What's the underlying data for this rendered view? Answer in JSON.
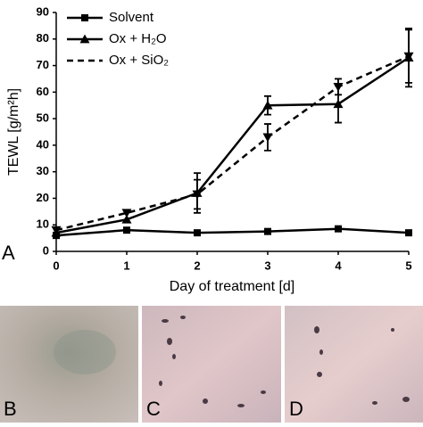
{
  "chart_data": {
    "type": "line",
    "panel_label": "A",
    "y_label": "TEWL [g/m²h]",
    "x_label": "Day of treatment [d]",
    "x": [
      0,
      1,
      2,
      3,
      4,
      5
    ],
    "xlim": [
      0,
      5
    ],
    "xticks": [
      0,
      1,
      2,
      3,
      4,
      5
    ],
    "ylim": [
      0,
      90
    ],
    "yticks": [
      0,
      10,
      20,
      30,
      40,
      50,
      60,
      70,
      80,
      90
    ],
    "series": [
      {
        "name": "Solvent",
        "color": "#000000",
        "marker": "square",
        "dashed": false,
        "values": [
          6,
          8,
          7,
          7.5,
          8.5,
          7
        ],
        "errors": [
          null,
          null,
          null,
          null,
          null,
          null
        ]
      },
      {
        "name": "Ox + H₂O",
        "color": "#000000",
        "marker": "triangle-up",
        "dashed": false,
        "values": [
          7,
          12,
          22,
          55,
          55.5,
          73
        ],
        "errors": [
          null,
          null,
          7.5,
          3.5,
          7,
          11
        ]
      },
      {
        "name": "Ox + SiO₂",
        "color": "#000000",
        "marker": "triangle-down",
        "dashed": true,
        "values": [
          8,
          14.5,
          21.5,
          43,
          62,
          73.5
        ],
        "errors": [
          null,
          null,
          5.5,
          5,
          3,
          10
        ]
      }
    ]
  },
  "photos": [
    {
      "label": "B"
    },
    {
      "label": "C"
    },
    {
      "label": "D"
    }
  ]
}
